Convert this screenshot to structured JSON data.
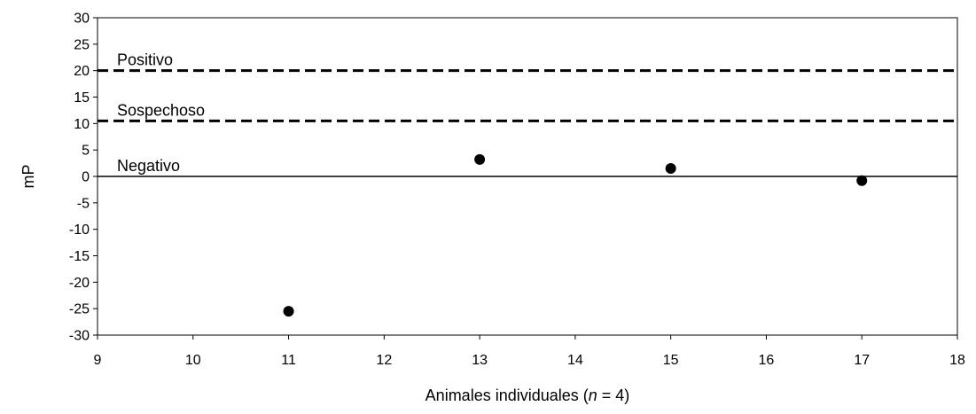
{
  "chart_data": {
    "type": "scatter",
    "x": [
      11,
      13,
      15,
      17
    ],
    "y": [
      -25.5,
      3.2,
      1.5,
      -0.8
    ],
    "xlim": [
      9,
      18
    ],
    "ylim": [
      -30,
      30
    ],
    "xticks": [
      9,
      10,
      11,
      12,
      13,
      14,
      15,
      16,
      17,
      18
    ],
    "yticks": [
      30,
      25,
      20,
      15,
      10,
      5,
      0,
      -5,
      -10,
      -15,
      -20,
      -25,
      -30
    ],
    "ylabel": "mP",
    "xlabel": {
      "prefix": "Animales individuales (",
      "italic": "n",
      "suffix": " = 4)"
    },
    "thresholds": [
      {
        "label": "Positivo",
        "y": 20,
        "style": "dashed"
      },
      {
        "label": "Sospechoso",
        "y": 10.5,
        "style": "dashed"
      },
      {
        "label": "Negativo",
        "y": 0,
        "style": "solid"
      }
    ],
    "grid": false,
    "legend": "none"
  }
}
